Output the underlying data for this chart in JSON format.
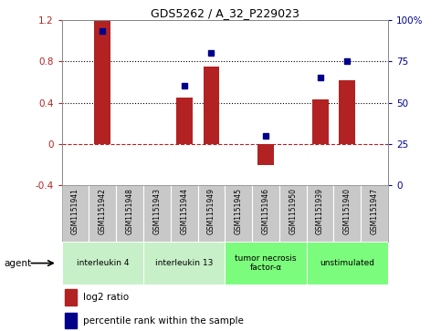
{
  "title": "GDS5262 / A_32_P229023",
  "samples": [
    "GSM1151941",
    "GSM1151942",
    "GSM1151948",
    "GSM1151943",
    "GSM1151944",
    "GSM1151949",
    "GSM1151945",
    "GSM1151946",
    "GSM1151950",
    "GSM1151939",
    "GSM1151940",
    "GSM1151947"
  ],
  "log2_ratio": [
    0,
    1.2,
    0,
    0,
    0.45,
    0.75,
    0,
    -0.2,
    0,
    0.43,
    0.62,
    0
  ],
  "percentile_rank": [
    null,
    93,
    null,
    null,
    60,
    80,
    null,
    30,
    null,
    65,
    75,
    null
  ],
  "ylim_left": [
    -0.4,
    1.2
  ],
  "ylim_right": [
    0,
    100
  ],
  "yticks_left": [
    -0.4,
    0,
    0.4,
    0.8,
    1.2
  ],
  "yticks_right": [
    0,
    25,
    50,
    75,
    100
  ],
  "hlines": [
    0.4,
    0.8
  ],
  "bar_color": "#b22222",
  "dot_color": "#00008b",
  "groups": [
    {
      "label": "interleukin 4",
      "start": 0,
      "end": 3,
      "color": "#c8f0c8"
    },
    {
      "label": "interleukin 13",
      "start": 3,
      "end": 6,
      "color": "#c8f0c8"
    },
    {
      "label": "tumor necrosis\nfactor-α",
      "start": 6,
      "end": 9,
      "color": "#7CFC7C"
    },
    {
      "label": "unstimulated",
      "start": 9,
      "end": 12,
      "color": "#7CFC7C"
    }
  ],
  "agent_label": "agent",
  "legend_bar_label": "log2 ratio",
  "legend_dot_label": "percentile rank within the sample",
  "background_color": "#ffffff",
  "plot_bg_color": "#ffffff",
  "sample_bg_color": "#c8c8c8",
  "border_color": "#888888"
}
